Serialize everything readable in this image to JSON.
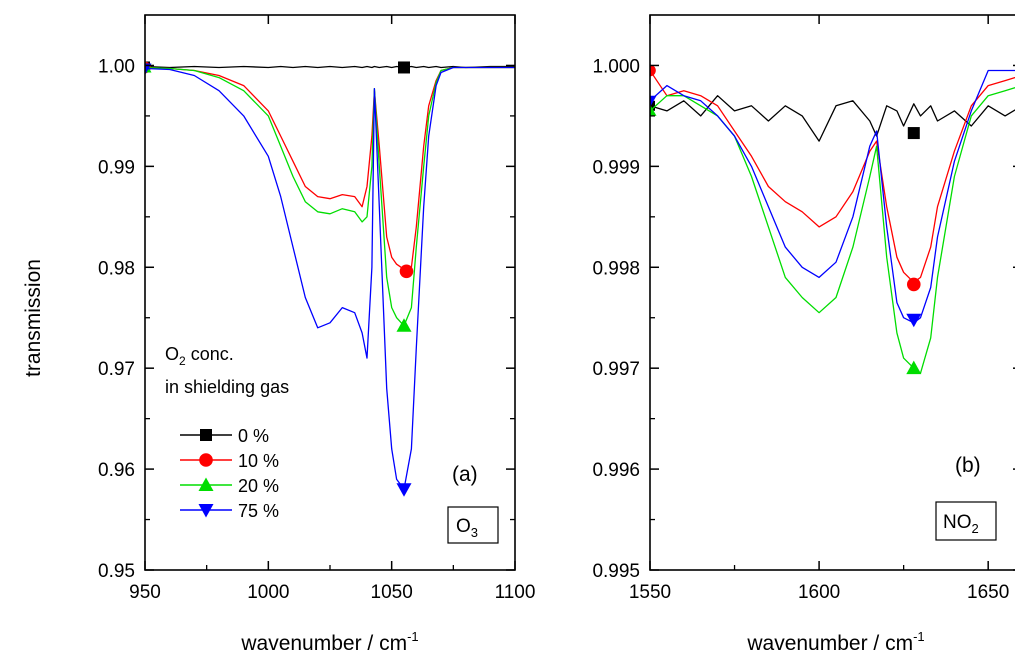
{
  "figure": {
    "ylabel": "transmission"
  },
  "legend": {
    "title_line1_main": "O",
    "title_line1_sub": "2",
    "title_line1_rest": " conc.",
    "title_line2": "in shielding gas"
  },
  "chart_data": [
    {
      "type": "line",
      "panel_label": "(a)",
      "species_main": "O",
      "species_sub": "3",
      "xlabel_main": "wavenumber / cm",
      "xlabel_sup": "-1",
      "xlim": [
        950,
        1100
      ],
      "ylim": [
        0.95,
        1.005
      ],
      "x_ticks": [
        950,
        1000,
        1050,
        1100
      ],
      "x_tick_labels": [
        "950",
        "1000",
        "1050",
        "1100"
      ],
      "y_ticks": [
        0.95,
        0.96,
        0.97,
        0.98,
        0.99,
        1.0
      ],
      "y_tick_labels": [
        "0.95",
        "0.96",
        "0.97",
        "0.98",
        "0.99",
        "1.00"
      ],
      "x": [
        950,
        960,
        970,
        980,
        990,
        1000,
        1005,
        1010,
        1015,
        1020,
        1025,
        1030,
        1035,
        1038,
        1040,
        1042,
        1043,
        1045,
        1048,
        1050,
        1052,
        1055,
        1058,
        1060,
        1063,
        1065,
        1068,
        1070,
        1075,
        1080,
        1090,
        1100
      ],
      "series": [
        {
          "name": "0 %",
          "color": "#000000",
          "marker": "square",
          "marker_x": 1055,
          "marker_y": 0.9998,
          "values": [
            0.9999,
            0.9998,
            0.9999,
            0.9998,
            0.9999,
            0.9998,
            0.9999,
            0.9998,
            0.9999,
            0.9998,
            0.9999,
            0.9998,
            0.9999,
            0.9998,
            0.9999,
            0.9998,
            0.9999,
            0.9998,
            0.9999,
            0.9998,
            0.9999,
            0.9998,
            0.9999,
            0.9998,
            0.9999,
            0.9998,
            0.9999,
            0.9998,
            0.9999,
            0.9998,
            0.9999,
            0.9999
          ]
        },
        {
          "name": "10 %",
          "color": "#ff0000",
          "marker": "circle",
          "marker_x": 1056,
          "marker_y": 0.9796,
          "values": [
            0.9998,
            0.9997,
            0.9995,
            0.999,
            0.998,
            0.9955,
            0.993,
            0.9905,
            0.988,
            0.987,
            0.9868,
            0.9872,
            0.987,
            0.986,
            0.988,
            0.993,
            0.9975,
            0.992,
            0.983,
            0.981,
            0.9803,
            0.9798,
            0.98,
            0.984,
            0.992,
            0.996,
            0.9985,
            0.9995,
            0.9998,
            0.9998,
            0.9998,
            0.9998
          ]
        },
        {
          "name": "20 %",
          "color": "#00dd00",
          "marker": "triangle-up",
          "marker_x": 1055,
          "marker_y": 0.9742,
          "values": [
            0.9998,
            0.9997,
            0.9995,
            0.9988,
            0.9975,
            0.995,
            0.992,
            0.989,
            0.9865,
            0.9855,
            0.9853,
            0.9858,
            0.9855,
            0.9845,
            0.985,
            0.99,
            0.9977,
            0.99,
            0.979,
            0.976,
            0.975,
            0.9742,
            0.976,
            0.982,
            0.99,
            0.995,
            0.9983,
            0.9995,
            0.9998,
            0.9998,
            0.9998,
            0.9998
          ]
        },
        {
          "name": "75 %",
          "color": "#0000ff",
          "marker": "triangle-down",
          "marker_x": 1055,
          "marker_y": 0.958,
          "values": [
            0.9997,
            0.9996,
            0.999,
            0.9975,
            0.995,
            0.991,
            0.987,
            0.982,
            0.977,
            0.974,
            0.9745,
            0.976,
            0.9755,
            0.9735,
            0.971,
            0.98,
            0.9977,
            0.986,
            0.968,
            0.962,
            0.959,
            0.958,
            0.962,
            0.972,
            0.986,
            0.993,
            0.998,
            0.9993,
            0.9998,
            0.9998,
            0.9998,
            0.9998
          ]
        }
      ]
    },
    {
      "type": "line",
      "panel_label": "(b)",
      "species_main": "NO",
      "species_sub": "2",
      "xlabel_main": "wavenumber / cm",
      "xlabel_sup": "-1",
      "xlim": [
        1550,
        1660
      ],
      "ylim": [
        0.995,
        1.0005
      ],
      "x_ticks": [
        1550,
        1600,
        1650
      ],
      "x_tick_labels": [
        "1550",
        "1600",
        "1650"
      ],
      "y_ticks": [
        0.995,
        0.996,
        0.997,
        0.998,
        0.999,
        1.0
      ],
      "y_tick_labels": [
        "0.995",
        "0.996",
        "0.997",
        "0.998",
        "0.999",
        "1.000"
      ],
      "x": [
        1550,
        1555,
        1560,
        1565,
        1570,
        1575,
        1580,
        1585,
        1590,
        1595,
        1600,
        1605,
        1610,
        1615,
        1617,
        1620,
        1623,
        1625,
        1628,
        1630,
        1633,
        1635,
        1640,
        1645,
        1650,
        1655,
        1660
      ],
      "series": [
        {
          "name": "0 %",
          "color": "#000000",
          "marker": "square",
          "marker_x": 1628,
          "marker_y": 0.99933,
          "values": [
            0.9996,
            0.99955,
            0.99965,
            0.9995,
            0.9997,
            0.99955,
            0.9996,
            0.99945,
            0.9996,
            0.9995,
            0.99925,
            0.9996,
            0.99965,
            0.99945,
            0.9993,
            0.9996,
            0.99955,
            0.9994,
            0.99962,
            0.9995,
            0.9996,
            0.99945,
            0.99955,
            0.9994,
            0.9996,
            0.9995,
            0.9996
          ]
        },
        {
          "name": "10 %",
          "color": "#ff0000",
          "marker": "circle",
          "marker_x": 1628,
          "marker_y": 0.99783,
          "values": [
            0.99995,
            0.9997,
            0.99975,
            0.9997,
            0.9996,
            0.99935,
            0.9991,
            0.9988,
            0.99865,
            0.99855,
            0.9984,
            0.9985,
            0.99875,
            0.99915,
            0.99925,
            0.9986,
            0.9981,
            0.99795,
            0.99785,
            0.9979,
            0.9982,
            0.9986,
            0.99915,
            0.9996,
            0.9998,
            0.99985,
            0.9999
          ]
        },
        {
          "name": "20 %",
          "color": "#00dd00",
          "marker": "triangle-up",
          "marker_x": 1628,
          "marker_y": 0.997,
          "values": [
            0.99955,
            0.9997,
            0.9997,
            0.9996,
            0.9995,
            0.9993,
            0.9989,
            0.9984,
            0.9979,
            0.9977,
            0.99755,
            0.9977,
            0.9982,
            0.9989,
            0.9992,
            0.9981,
            0.99735,
            0.9971,
            0.997,
            0.99695,
            0.9973,
            0.9979,
            0.9989,
            0.9995,
            0.9997,
            0.99975,
            0.9998
          ]
        },
        {
          "name": "75 %",
          "color": "#0000ff",
          "marker": "triangle-down",
          "marker_x": 1628,
          "marker_y": 0.99748,
          "values": [
            0.99965,
            0.9998,
            0.9997,
            0.99965,
            0.9995,
            0.9993,
            0.999,
            0.9986,
            0.9982,
            0.998,
            0.9979,
            0.99805,
            0.9985,
            0.9992,
            0.99935,
            0.9984,
            0.99765,
            0.9975,
            0.99745,
            0.9975,
            0.9978,
            0.9983,
            0.99905,
            0.99955,
            0.99995,
            0.99995,
            0.99995
          ]
        }
      ]
    }
  ]
}
